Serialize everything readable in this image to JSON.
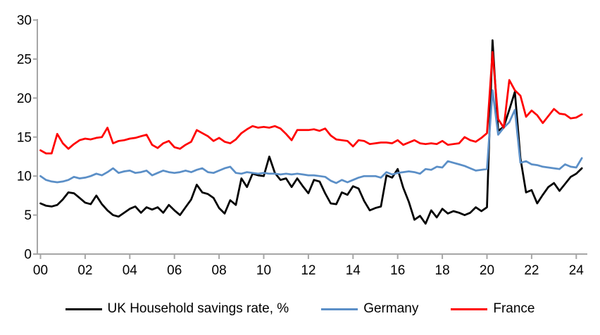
{
  "chart_data": {
    "type": "line",
    "title": "",
    "frequency": "quarterly",
    "x_start": 2000,
    "x_step": 0.25,
    "x_axis": {
      "tick_labels": [
        "00",
        "02",
        "04",
        "06",
        "08",
        "10",
        "12",
        "14",
        "16",
        "18",
        "20",
        "22",
        "24"
      ],
      "tick_interval_years": 2
    },
    "y_axis": {
      "tick_labels": [
        "0",
        "5",
        "10",
        "15",
        "20",
        "25",
        "30"
      ],
      "ticks": [
        0,
        5,
        10,
        15,
        20,
        25,
        30
      ],
      "lim": [
        0,
        30
      ],
      "gridlines": false
    },
    "legend_position": "bottom",
    "series": [
      {
        "name": "UK Household savings rate, %",
        "color": "#000000",
        "values": [
          6.5,
          6.2,
          6.1,
          6.3,
          7.0,
          7.9,
          7.8,
          7.2,
          6.6,
          6.4,
          7.5,
          6.4,
          5.6,
          5.0,
          4.8,
          5.3,
          5.8,
          6.1,
          5.3,
          6.0,
          5.7,
          6.0,
          5.3,
          6.3,
          5.6,
          5.0,
          6.0,
          7.0,
          8.9,
          7.9,
          7.7,
          7.2,
          5.9,
          5.2,
          6.9,
          6.3,
          9.7,
          8.6,
          10.3,
          10.1,
          10.0,
          12.5,
          10.4,
          9.5,
          9.7,
          8.6,
          9.7,
          8.7,
          7.8,
          9.5,
          9.3,
          7.8,
          6.5,
          6.4,
          7.9,
          7.6,
          8.7,
          8.4,
          6.8,
          5.6,
          5.9,
          6.1,
          10.1,
          9.8,
          10.9,
          8.5,
          6.7,
          4.4,
          4.9,
          3.9,
          5.6,
          4.7,
          5.8,
          5.2,
          5.5,
          5.3,
          5.0,
          5.3,
          6.0,
          5.5,
          6.0,
          27.4,
          15.8,
          16.3,
          18.5,
          20.8,
          12.3,
          7.9,
          8.2,
          6.5,
          7.6,
          8.6,
          9.1,
          8.1,
          9.0,
          9.9,
          10.3,
          11.0
        ]
      },
      {
        "name": "Germany",
        "color": "#5b8fc7",
        "values": [
          10.0,
          9.5,
          9.3,
          9.2,
          9.3,
          9.5,
          9.9,
          9.7,
          9.8,
          10.0,
          10.3,
          10.1,
          10.5,
          11.0,
          10.4,
          10.6,
          10.7,
          10.4,
          10.5,
          10.7,
          10.1,
          10.4,
          10.7,
          10.5,
          10.4,
          10.5,
          10.7,
          10.5,
          10.8,
          11.0,
          10.5,
          10.4,
          10.7,
          11.0,
          11.2,
          10.4,
          10.3,
          10.5,
          10.4,
          10.3,
          10.4,
          10.3,
          10.3,
          10.2,
          10.3,
          10.2,
          10.3,
          10.2,
          10.1,
          10.1,
          10.0,
          9.9,
          9.4,
          9.1,
          9.5,
          9.2,
          9.5,
          9.8,
          10.0,
          10.0,
          10.0,
          9.8,
          10.5,
          10.2,
          10.4,
          10.5,
          10.6,
          10.5,
          10.3,
          10.9,
          10.8,
          11.2,
          11.1,
          11.9,
          11.7,
          11.5,
          11.3,
          11.0,
          10.7,
          10.8,
          10.9,
          21.0,
          15.3,
          16.2,
          16.9,
          18.5,
          11.7,
          11.9,
          11.5,
          11.4,
          11.2,
          11.1,
          11.0,
          10.9,
          11.5,
          11.2,
          11.1,
          12.3
        ]
      },
      {
        "name": "France",
        "color": "#ff0000",
        "values": [
          13.3,
          12.9,
          12.9,
          15.4,
          14.2,
          13.5,
          14.1,
          14.6,
          14.8,
          14.7,
          14.9,
          15.0,
          16.2,
          14.2,
          14.5,
          14.6,
          14.8,
          14.9,
          15.1,
          15.3,
          14.0,
          13.6,
          14.2,
          14.5,
          13.7,
          13.5,
          14.0,
          14.4,
          15.9,
          15.5,
          15.1,
          14.5,
          14.9,
          14.4,
          14.2,
          14.7,
          15.5,
          16.0,
          16.4,
          16.2,
          16.3,
          16.2,
          16.4,
          16.1,
          15.4,
          14.6,
          15.9,
          15.9,
          15.9,
          16.0,
          15.8,
          16.1,
          15.2,
          14.7,
          14.6,
          14.5,
          13.8,
          14.6,
          14.5,
          14.1,
          14.2,
          14.3,
          14.3,
          14.2,
          14.6,
          14.0,
          14.3,
          14.6,
          14.2,
          14.1,
          14.2,
          14.1,
          14.5,
          14.0,
          14.1,
          14.2,
          15.0,
          14.6,
          14.4,
          14.9,
          15.5,
          25.9,
          17.3,
          16.2,
          22.3,
          21.0,
          20.3,
          17.6,
          18.4,
          17.8,
          16.8,
          17.7,
          18.6,
          18.0,
          17.9,
          17.4,
          17.5,
          17.9
        ]
      }
    ]
  },
  "colors": {
    "axis": "#a6a6a6",
    "text": "#000000",
    "background": "#ffffff"
  }
}
